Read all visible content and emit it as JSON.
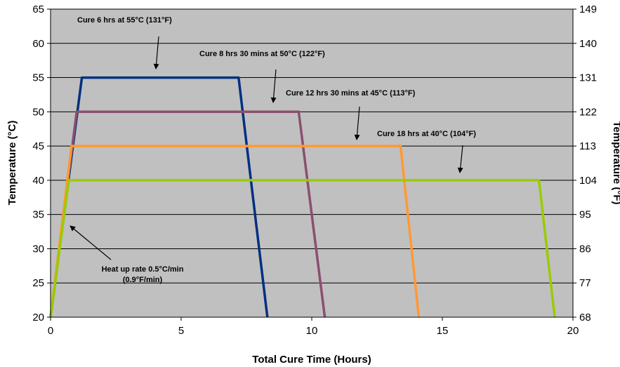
{
  "chart_data": {
    "type": "line",
    "xlabel": "Total Cure Time (Hours)",
    "ylabel": "Temperature (°C)",
    "y2label": "Temperature (°F)",
    "xlim": [
      0,
      20
    ],
    "ylim": [
      20,
      65
    ],
    "x_ticks": [
      0,
      5,
      10,
      15,
      20
    ],
    "y_ticks": [
      20,
      25,
      30,
      35,
      40,
      45,
      50,
      55,
      60,
      65
    ],
    "y2_ticks": [
      "68",
      "77",
      "86",
      "95",
      "104",
      "113",
      "122",
      "131",
      "140",
      "149"
    ],
    "grid": true,
    "plot_background": "#c0c0c0",
    "series": [
      {
        "color": "#003080",
        "points": [
          [
            0,
            20
          ],
          [
            1.2,
            55
          ],
          [
            7.2,
            55
          ],
          [
            8.3,
            20
          ]
        ]
      },
      {
        "color": "#8a4f6e",
        "points": [
          [
            0,
            20
          ],
          [
            1.0,
            50
          ],
          [
            9.5,
            50
          ],
          [
            10.5,
            20
          ]
        ]
      },
      {
        "color": "#ff9933",
        "points": [
          [
            0,
            20
          ],
          [
            0.8,
            45
          ],
          [
            13.4,
            45
          ],
          [
            14.1,
            20
          ]
        ]
      },
      {
        "color": "#99cc00",
        "points": [
          [
            0,
            20
          ],
          [
            0.7,
            40
          ],
          [
            18.7,
            40
          ],
          [
            19.3,
            20
          ]
        ]
      }
    ],
    "annotations": [
      {
        "label": "Cure 6 hrs at 55°C (131°F)"
      },
      {
        "label": "Cure 8 hrs 30 mins at 50°C (122°F)"
      },
      {
        "label": "Cure 12 hrs 30 mins at 45°C (113°F)"
      },
      {
        "label": "Cure 18 hrs at 40°C (104°F)"
      },
      {
        "label": "Heat up rate 0.5°C/min"
      },
      {
        "label": "(0.9°F/min)"
      }
    ]
  }
}
